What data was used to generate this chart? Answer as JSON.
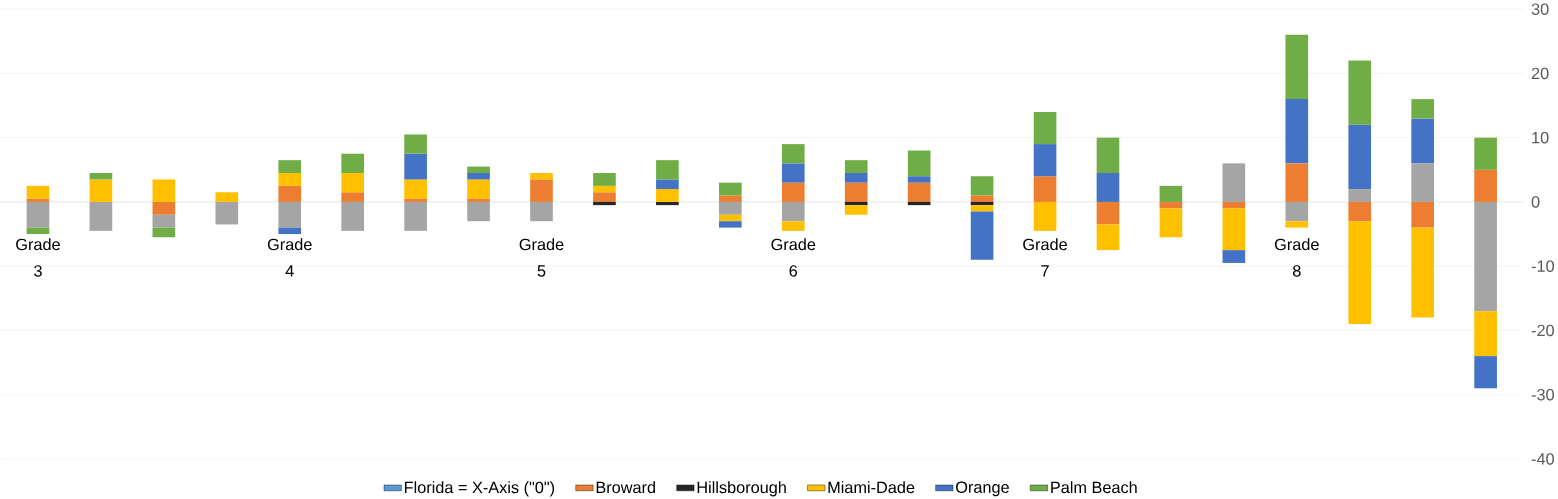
{
  "chart_data": {
    "type": "bar",
    "stacked": true,
    "categories": [
      "Grade 3",
      null,
      null,
      null,
      "Grade 4",
      null,
      null,
      null,
      "Grade 5",
      null,
      null,
      null,
      "Grade 6",
      null,
      null,
      null,
      "Grade 7",
      null,
      null,
      null,
      "Grade 8",
      null,
      null,
      null
    ],
    "series": [
      {
        "name": "Florida = X-Axis (\"0\")",
        "color": "#5b9bd5",
        "values": [
          0,
          0,
          0,
          0,
          0,
          0,
          0,
          0,
          0,
          0,
          0,
          0,
          0,
          0,
          0,
          0,
          0,
          0,
          0,
          0,
          0,
          0,
          0,
          0
        ]
      },
      {
        "name": "Broward",
        "color": "#ed7d31",
        "values": [
          0.5,
          null,
          -2,
          null,
          2.5,
          1.5,
          0.5,
          0.5,
          3.5,
          1.5,
          null,
          1,
          3,
          3,
          3,
          1,
          4,
          -3.5,
          -1,
          -1,
          6,
          -3,
          -4,
          5
        ]
      },
      {
        "color": "#a5a5a5",
        "values": [
          -4,
          -4.5,
          -2,
          -3.5,
          -4,
          -4.5,
          -4.5,
          -3,
          -3,
          null,
          null,
          -2,
          -3,
          null,
          null,
          null,
          null,
          null,
          null,
          6,
          -3,
          2,
          6,
          -17
        ]
      },
      {
        "name": "Hillsborough",
        "color": "#262626",
        "values": [
          null,
          null,
          null,
          null,
          null,
          null,
          null,
          null,
          null,
          -0.5,
          -0.5,
          null,
          null,
          -0.5,
          -0.5,
          -0.5,
          null,
          null,
          null,
          null,
          null,
          null,
          null,
          null
        ]
      },
      {
        "name": "Miami-Dade",
        "color": "#ffc000",
        "values": [
          2,
          3.5,
          3.5,
          1.5,
          2,
          3,
          3,
          3,
          1,
          1,
          2,
          -1,
          -1.5,
          -1.5,
          null,
          -1,
          -4.5,
          -4,
          -4.5,
          -6.5,
          -1,
          -16,
          -14,
          -7
        ]
      },
      {
        "name": "Orange",
        "color": "#4472c4",
        "values": [
          null,
          null,
          null,
          null,
          -1,
          null,
          4,
          1,
          null,
          null,
          1.5,
          -1,
          3,
          1.5,
          1,
          -7.5,
          5,
          4.5,
          null,
          -2,
          10,
          10,
          7,
          -5
        ]
      },
      {
        "name": "Palm Beach",
        "color": "#70ad47",
        "values": [
          -1,
          1,
          -1.5,
          null,
          2,
          3,
          3,
          1,
          null,
          2,
          3,
          2,
          3,
          2,
          4,
          3,
          5,
          5.5,
          2.5,
          null,
          10,
          10,
          3,
          5
        ]
      }
    ],
    "ylim": [
      -40,
      30
    ],
    "yticks": [
      -40,
      -30,
      -20,
      -10,
      0,
      10,
      20,
      30
    ],
    "grid": "y",
    "legend": "bottom"
  }
}
